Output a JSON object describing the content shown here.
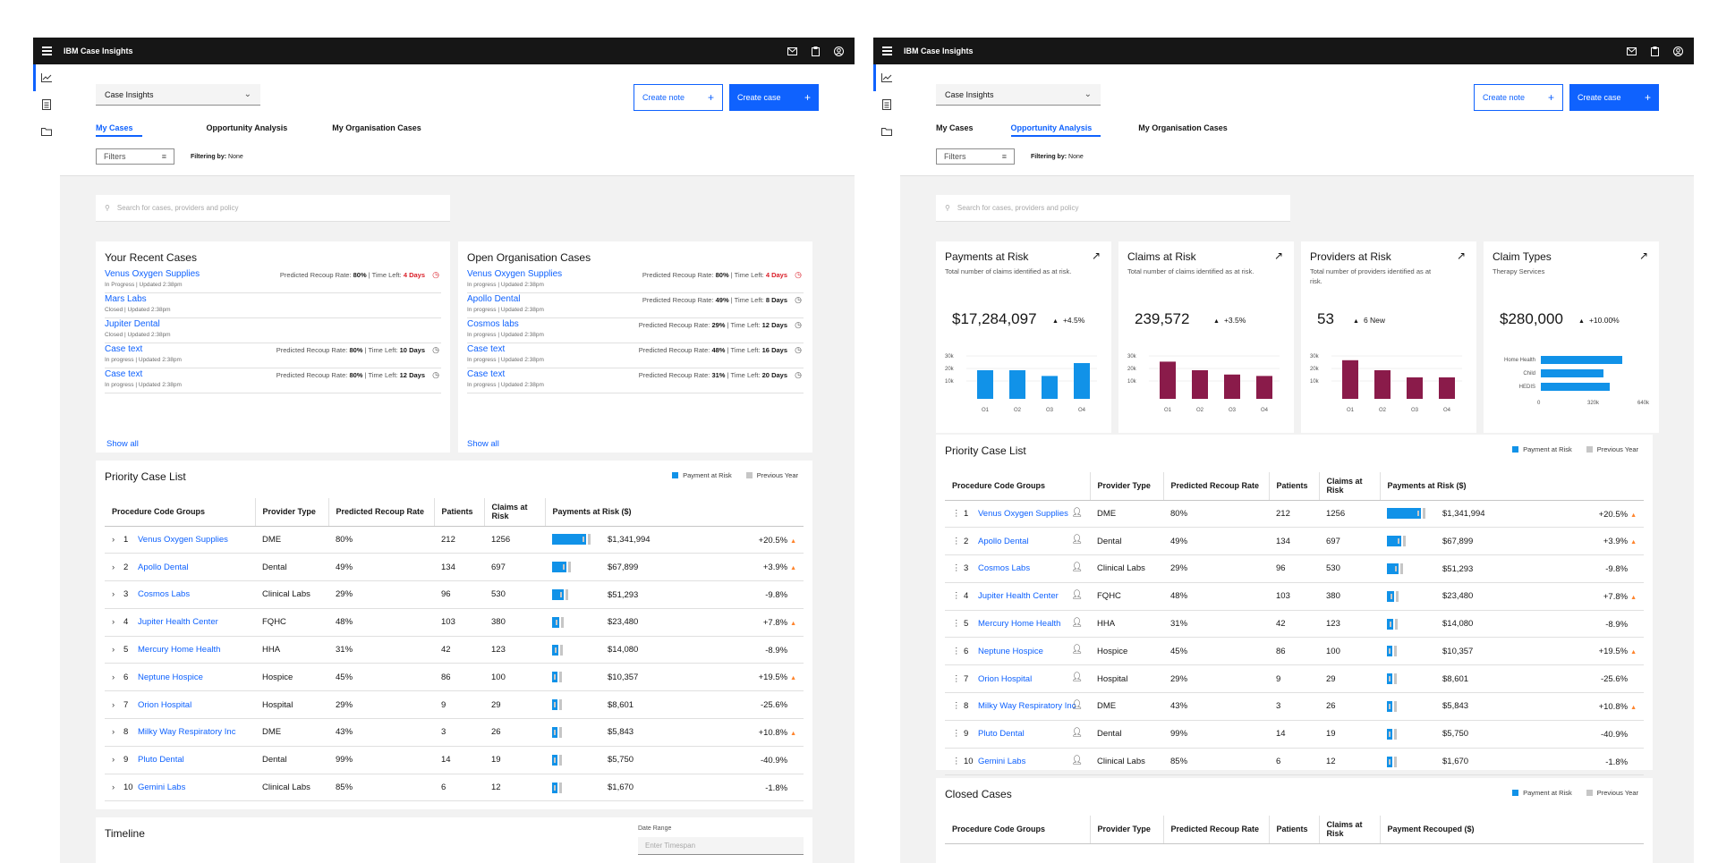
{
  "app_title": "IBM Case Insights",
  "workspace_select": "Case Insights",
  "buttons": {
    "create_note": "Create note",
    "create_case": "Create case"
  },
  "tabs": [
    "My Cases",
    "Opportunity Analysis",
    "My Organisation Cases"
  ],
  "filters_label": "Filters",
  "filtering_label": "Filtering by:",
  "filtering_value": "None",
  "search_placeholder": "Search for cases, providers and policy",
  "colors": {
    "accent": "#0f62fe",
    "payment_bar": "#1192e8",
    "risk_bar": "#8a1b4a",
    "previous_bar": "#c6c6c6",
    "alert": "#da1e28",
    "up_arrow": "#ff832b"
  },
  "recent_cases": {
    "title": "Your Recent Cases",
    "show_all": "Show all",
    "rows": [
      {
        "name": "Venus Oxygen Supplies",
        "sub": "In Progress | Updated 2:38pm",
        "rate": "80%",
        "time": "4 Days",
        "urgent": true
      },
      {
        "name": "Mars Labs",
        "sub": "Closed | Updated 2:38pm",
        "rate": "",
        "time": "",
        "urgent": false
      },
      {
        "name": "Jupiter Dental",
        "sub": "Closed | Updated 2:38pm",
        "rate": "",
        "time": "",
        "urgent": false
      },
      {
        "name": "Case text",
        "sub": "In progress | Updated 2:38pm",
        "rate": "80%",
        "time": "10 Days",
        "urgent": false
      },
      {
        "name": "Case text",
        "sub": "In progress | Updated 2:38pm",
        "rate": "80%",
        "time": "12 Days",
        "urgent": false
      }
    ]
  },
  "org_cases": {
    "title": "Open Organisation Cases",
    "show_all": "Show all",
    "rows": [
      {
        "name": "Venus Oxygen Supplies",
        "sub": "In progress | Updated 2:38pm",
        "rate": "80%",
        "time": "4 Days",
        "urgent": true
      },
      {
        "name": "Apollo Dental",
        "sub": "In progress | Updated 2:38pm",
        "rate": "49%",
        "time": "8 Days",
        "urgent": false
      },
      {
        "name": "Cosmos labs",
        "sub": "In progress | Updated 2:38pm",
        "rate": "29%",
        "time": "12 Days",
        "urgent": false
      },
      {
        "name": "Case text",
        "sub": "In progress | Updated 2:38pm",
        "rate": "48%",
        "time": "16 Days",
        "urgent": false
      },
      {
        "name": "Case text",
        "sub": "In progress | Updated 2:38pm",
        "rate": "31%",
        "time": "20 Days",
        "urgent": false
      }
    ]
  },
  "rate_label": "Predicted Recoup Rate:",
  "time_label": "Time Left:",
  "priority": {
    "title": "Priority Case List",
    "legend": [
      "Payment at Risk",
      "Previous Year"
    ],
    "columns": [
      "Procedure Code Groups",
      "Provider Type",
      "Predicted Recoup Rate",
      "Patients",
      "Claims at Risk",
      "Payments at Risk ($)"
    ],
    "rows": [
      {
        "n": "1",
        "name": "Venus Oxygen Supplies",
        "type": "DME",
        "rate": "80%",
        "patients": "212",
        "claims": "1256",
        "amount": "$1,341,994",
        "change": "+20.5%",
        "up": true,
        "share": 1.0
      },
      {
        "n": "2",
        "name": "Apollo Dental",
        "type": "Dental",
        "rate": "49%",
        "patients": "134",
        "claims": "697",
        "amount": "$67,899",
        "change": "+3.9%",
        "up": true,
        "share": 0.42
      },
      {
        "n": "3",
        "name": "Cosmos Labs",
        "type": "Clinical Labs",
        "rate": "29%",
        "patients": "96",
        "claims": "530",
        "amount": "$51,293",
        "change": "-9.8%",
        "up": false,
        "share": 0.34
      },
      {
        "n": "4",
        "name": "Jupiter Health Center",
        "type": "FQHC",
        "rate": "48%",
        "patients": "103",
        "claims": "380",
        "amount": "$23,480",
        "change": "+7.8%",
        "up": true,
        "share": 0.2
      },
      {
        "n": "5",
        "name": "Mercury Home Health",
        "type": "HHA",
        "rate": "31%",
        "patients": "42",
        "claims": "123",
        "amount": "$14,080",
        "change": "-8.9%",
        "up": false,
        "share": 0.18
      },
      {
        "n": "6",
        "name": "Neptune Hospice",
        "type": "Hospice",
        "rate": "45%",
        "patients": "86",
        "claims": "100",
        "amount": "$10,357",
        "change": "+19.5%",
        "up": true,
        "share": 0.15
      },
      {
        "n": "7",
        "name": "Orion Hospital",
        "type": "Hospital",
        "rate": "29%",
        "patients": "9",
        "claims": "29",
        "amount": "$8,601",
        "change": "-25.6%",
        "up": false,
        "share": 0.09
      },
      {
        "n": "8",
        "name": "Milky Way Respiratory Inc",
        "type": "DME",
        "rate": "43%",
        "patients": "3",
        "claims": "26",
        "amount": "$5,843",
        "change": "+10.8%",
        "up": true,
        "share": 0.09
      },
      {
        "n": "9",
        "name": "Pluto Dental",
        "type": "Dental",
        "rate": "99%",
        "patients": "14",
        "claims": "19",
        "amount": "$5,750",
        "change": "-40.9%",
        "up": false,
        "share": 0.07
      },
      {
        "n": "10",
        "name": "Gemini Labs",
        "type": "Clinical Labs",
        "rate": "85%",
        "patients": "6",
        "claims": "12",
        "amount": "$1,670",
        "change": "-1.8%",
        "up": false,
        "share": 0.06
      }
    ]
  },
  "timeline": {
    "title": "Timeline",
    "date_range_label": "Date Range",
    "date_placeholder": "Enter Timespan"
  },
  "kpis": [
    {
      "title": "Payments at Risk",
      "desc": "Total number of claims identified as at risk.",
      "value": "$17,284,097",
      "change": "+4.5%",
      "kind": "bar",
      "color": "#1192e8",
      "categories": [
        "Q1",
        "Q2",
        "Q3",
        "Q4"
      ],
      "values": [
        20000,
        20000,
        16000,
        25000
      ],
      "yticks": [
        "30k",
        "20k",
        "10k"
      ]
    },
    {
      "title": "Claims at Risk",
      "desc": "Total number of claims identified as at risk.",
      "value": "239,572",
      "change": "+3.5%",
      "kind": "bar",
      "color": "#8a1b4a",
      "categories": [
        "Q1",
        "Q2",
        "Q3",
        "Q4"
      ],
      "values": [
        26000,
        20000,
        17000,
        16000
      ],
      "yticks": [
        "30k",
        "20k",
        "10k"
      ]
    },
    {
      "title": "Providers at Risk",
      "desc": "Total number of providers identified as at risk.",
      "value": "53",
      "change": "6 New",
      "kind": "bar",
      "color": "#8a1b4a",
      "categories": [
        "Q1",
        "Q2",
        "Q3",
        "Q4"
      ],
      "values": [
        27000,
        20000,
        15000,
        15000
      ],
      "yticks": [
        "30k",
        "20k",
        "10k"
      ]
    },
    {
      "title": "Claim Types",
      "desc": "Therapy Services",
      "value": "$280,000",
      "change": "+10.00%",
      "kind": "hbar",
      "color": "#1192e8",
      "categories": [
        "Home Health",
        "Child",
        "HEDIS"
      ],
      "values": [
        520000,
        400000,
        440000
      ],
      "xticks": [
        "0",
        "320k",
        "640k"
      ]
    }
  ],
  "closed": {
    "title": "Closed Cases",
    "columns": [
      "Procedure Code Groups",
      "Provider Type",
      "Predicted Recoup Rate",
      "Patients",
      "Claims at Risk",
      "Payment Recouped ($)"
    ]
  }
}
